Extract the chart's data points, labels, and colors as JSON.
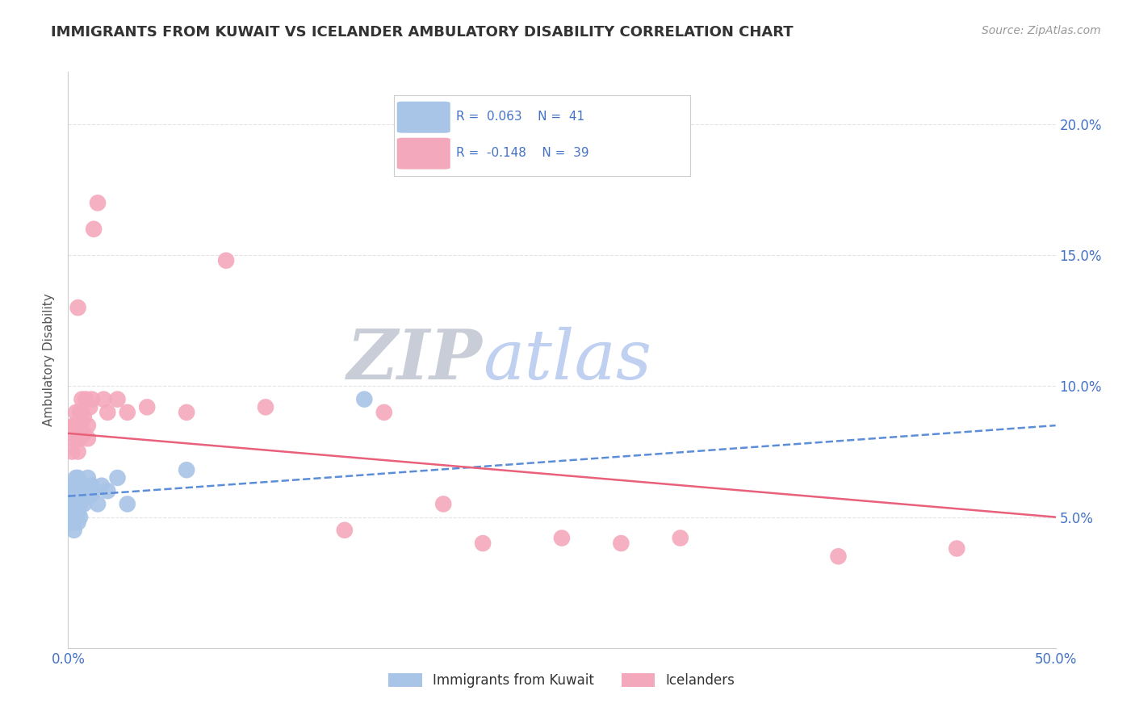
{
  "title": "IMMIGRANTS FROM KUWAIT VS ICELANDER AMBULATORY DISABILITY CORRELATION CHART",
  "source": "Source: ZipAtlas.com",
  "ylabel": "Ambulatory Disability",
  "xlim": [
    0.0,
    0.5
  ],
  "ylim": [
    0.0,
    0.22
  ],
  "x_ticks": [
    0.0,
    0.1,
    0.2,
    0.3,
    0.4,
    0.5
  ],
  "x_tick_labels": [
    "0.0%",
    "",
    "",
    "",
    "",
    "50.0%"
  ],
  "y_ticks": [
    0.0,
    0.05,
    0.1,
    0.15,
    0.2
  ],
  "y_tick_labels_right": [
    "",
    "5.0%",
    "10.0%",
    "15.0%",
    "20.0%"
  ],
  "R_blue": "0.063",
  "N_blue": "41",
  "R_pink": "-0.148",
  "N_pink": "39",
  "blue_dot_color": "#a8c4e6",
  "pink_dot_color": "#f4a8bc",
  "blue_line_color": "#5b8dd9",
  "pink_line_color": "#e8607a",
  "text_color": "#4472c4",
  "title_color": "#333333",
  "source_color": "#999999",
  "grid_color": "#dddddd",
  "watermark_zip_color": "#d0d8e8",
  "watermark_atlas_color": "#c8d8f0",
  "blue_scatter_x": [
    0.001,
    0.001,
    0.001,
    0.002,
    0.002,
    0.002,
    0.002,
    0.002,
    0.003,
    0.003,
    0.003,
    0.003,
    0.003,
    0.004,
    0.004,
    0.004,
    0.004,
    0.005,
    0.005,
    0.005,
    0.005,
    0.006,
    0.006,
    0.006,
    0.007,
    0.007,
    0.008,
    0.008,
    0.009,
    0.01,
    0.01,
    0.011,
    0.012,
    0.013,
    0.015,
    0.017,
    0.02,
    0.025,
    0.03,
    0.06,
    0.15
  ],
  "blue_scatter_y": [
    0.05,
    0.048,
    0.055,
    0.06,
    0.052,
    0.058,
    0.048,
    0.055,
    0.062,
    0.058,
    0.05,
    0.045,
    0.055,
    0.065,
    0.06,
    0.055,
    0.05,
    0.065,
    0.058,
    0.052,
    0.048,
    0.06,
    0.055,
    0.05,
    0.062,
    0.058,
    0.06,
    0.055,
    0.058,
    0.065,
    0.06,
    0.058,
    0.062,
    0.06,
    0.055,
    0.062,
    0.06,
    0.065,
    0.055,
    0.068,
    0.095
  ],
  "pink_scatter_x": [
    0.002,
    0.003,
    0.003,
    0.004,
    0.004,
    0.005,
    0.005,
    0.005,
    0.006,
    0.006,
    0.006,
    0.007,
    0.007,
    0.008,
    0.008,
    0.009,
    0.01,
    0.01,
    0.011,
    0.012,
    0.013,
    0.015,
    0.018,
    0.02,
    0.025,
    0.03,
    0.04,
    0.06,
    0.08,
    0.1,
    0.14,
    0.16,
    0.19,
    0.21,
    0.25,
    0.28,
    0.31,
    0.39,
    0.45
  ],
  "pink_scatter_y": [
    0.075,
    0.085,
    0.08,
    0.09,
    0.085,
    0.13,
    0.08,
    0.075,
    0.09,
    0.085,
    0.08,
    0.095,
    0.09,
    0.088,
    0.082,
    0.095,
    0.085,
    0.08,
    0.092,
    0.095,
    0.16,
    0.17,
    0.095,
    0.09,
    0.095,
    0.09,
    0.092,
    0.09,
    0.148,
    0.092,
    0.045,
    0.09,
    0.055,
    0.04,
    0.042,
    0.04,
    0.042,
    0.035,
    0.038
  ],
  "blue_trend_y0": 0.058,
  "blue_trend_y1": 0.085,
  "pink_trend_y0": 0.082,
  "pink_trend_y1": 0.05
}
